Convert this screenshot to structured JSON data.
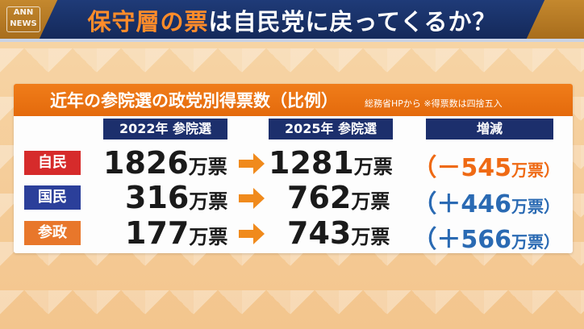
{
  "banner": {
    "logo": "ANN NEWS",
    "headline_accent": "保守層の票",
    "headline_rest": "は自民党に戻ってくるか？"
  },
  "card": {
    "title": "近年の参院選の政党別得票数（比例）",
    "note": "総務省HPから ※得票数は四捨五入",
    "col_2022": "2022年 参院選",
    "col_2025": "2025年 参院選",
    "col_diff": "増減"
  },
  "rows": [
    {
      "party": "自民",
      "party_color": "#d62b2b",
      "v2022": "1826",
      "v2025": "1281",
      "diff": "（－545",
      "diff_color": "#ef6a14"
    },
    {
      "party": "国民",
      "party_color": "#2b3f9a",
      "v2022": "316",
      "v2025": "762",
      "diff": "（＋446",
      "diff_color": "#2a6ab3"
    },
    {
      "party": "参政",
      "party_color": "#e8772b",
      "v2022": "177",
      "v2025": "743",
      "diff": "（＋566",
      "diff_color": "#2a6ab3"
    }
  ],
  "unit": "万票",
  "diff_unit": "万票）"
}
